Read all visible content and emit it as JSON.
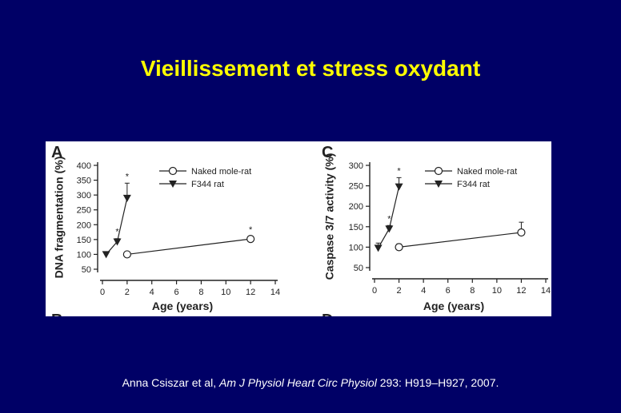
{
  "slide": {
    "title": "Vieillissement et stress oxydant"
  },
  "citation": {
    "authors": "Anna Csiszar et al, ",
    "journal": "Am J Physiol Heart Circ Physiol",
    "details": " 293: H919–H927, 2007."
  },
  "colors": {
    "background": "#000066",
    "title": "#ffff00",
    "citation": "#ffffff",
    "ink": "#222222"
  },
  "chart_data": [
    {
      "type": "line",
      "panel": "A",
      "ylabel": "DNA fragmentation (%)",
      "xlabel": "Age (years)",
      "xlim": [
        0,
        14
      ],
      "ylim": [
        50,
        400
      ],
      "xticks": [
        0,
        2,
        4,
        6,
        8,
        10,
        12,
        14
      ],
      "yticks": [
        50,
        100,
        150,
        200,
        250,
        300,
        350,
        400
      ],
      "legend_position": "top-right",
      "series": [
        {
          "name": "Naked mole-rat",
          "marker": "open-circle",
          "x": [
            2,
            12
          ],
          "y": [
            100,
            152
          ],
          "err": [
            0,
            8
          ],
          "sig": [
            "",
            "*"
          ]
        },
        {
          "name": "F344 rat",
          "marker": "filled-down-triangle",
          "x": [
            0.3,
            1.2,
            2
          ],
          "y": [
            100,
            143,
            290
          ],
          "err": [
            0,
            10,
            50
          ],
          "sig": [
            "",
            "*",
            "*"
          ]
        }
      ],
      "next_panel_label": "B"
    },
    {
      "type": "line",
      "panel": "C",
      "ylabel": "Caspase 3/7 activity (%)",
      "xlabel": "Age (years)",
      "xlim": [
        0,
        14
      ],
      "ylim": [
        50,
        300
      ],
      "xticks": [
        0,
        2,
        4,
        6,
        8,
        10,
        12,
        14
      ],
      "yticks": [
        50,
        100,
        150,
        200,
        250,
        300
      ],
      "legend_position": "top-right",
      "series": [
        {
          "name": "Naked mole-rat",
          "marker": "open-circle",
          "x": [
            2,
            12
          ],
          "y": [
            100,
            136
          ],
          "err": [
            8,
            25
          ],
          "sig": [
            "",
            ""
          ]
        },
        {
          "name": "F344 rat",
          "marker": "filled-down-triangle",
          "x": [
            0.3,
            1.2,
            2
          ],
          "y": [
            98,
            145,
            248
          ],
          "err": [
            12,
            8,
            22
          ],
          "sig": [
            "",
            "*",
            "*"
          ]
        }
      ],
      "next_panel_label": "D"
    }
  ]
}
